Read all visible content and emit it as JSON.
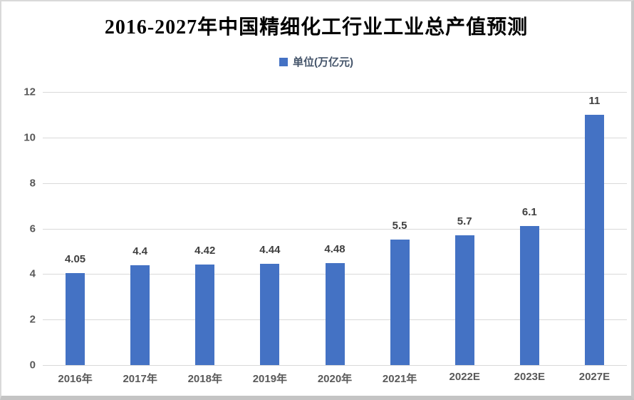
{
  "chart_data": {
    "type": "bar",
    "title": "2016-2027年中国精细化工行业工业总产值预测",
    "categories": [
      "2016年",
      "2017年",
      "2018年",
      "2019年",
      "2020年",
      "2021年",
      "2022E",
      "2023E",
      "2027E"
    ],
    "values": [
      4.05,
      4.4,
      4.42,
      4.44,
      4.48,
      5.5,
      5.7,
      6.1,
      11
    ],
    "xlabel": "",
    "ylabel": "",
    "ylim": [
      0,
      12
    ],
    "yticks": [
      0,
      2,
      4,
      6,
      8,
      10,
      12
    ],
    "grid": true,
    "legend_entries": [
      "单位(万亿元)"
    ],
    "legend_position": "top-center"
  },
  "legend": {
    "label": "单位(万亿元)"
  },
  "colors": {
    "bar": "#4472c4",
    "gridline": "#d9d9d9",
    "axis_tick_text": "#595959",
    "value_label_text": "#404040",
    "legend_text": "#44546a",
    "title_text": "#000000"
  }
}
